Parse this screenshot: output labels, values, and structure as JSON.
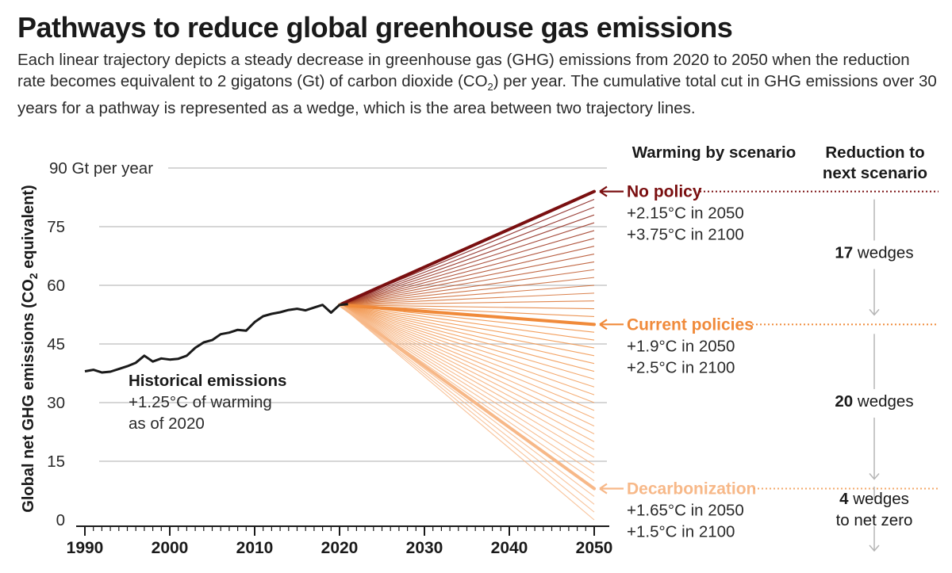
{
  "header": {
    "title": "Pathways to reduce global greenhouse gas emissions",
    "subtitle_part1": "Each linear trajectory depicts a steady decrease in greenhouse gas (GHG) emissions from 2020 to 2050 when the reduction rate becomes equivalent to 2 gigatons (Gt) of carbon dioxide (CO",
    "subtitle_sub": "2",
    "subtitle_part2": ") per year. The cumulative total cut in GHG emissions over 30 years for a pathway is represented as a wedge, which is the area between two trajectory lines."
  },
  "colors": {
    "no_policy": "#7a0f10",
    "current": "#f08a3a",
    "decarb": "#f7b888",
    "historical": "#1a1a1a",
    "grid": "#bdbdbd",
    "text": "#1a1a1a",
    "arrow_gray": "#b5b5b5"
  },
  "chart_data": {
    "type": "line",
    "title": "Pathways to reduce global greenhouse gas emissions",
    "xlabel": "",
    "ylabel_main": "Global net GHG emissions (CO",
    "ylabel_sub": "2",
    "ylabel_end": " equivalent)",
    "xlim": [
      1990,
      2050
    ],
    "ylim": [
      0,
      90
    ],
    "x_ticks": [
      1990,
      2000,
      2010,
      2020,
      2030,
      2040,
      2050
    ],
    "y_ticks": [
      {
        "value": 0,
        "label": "0"
      },
      {
        "value": 15,
        "label": "15"
      },
      {
        "value": 30,
        "label": "30"
      },
      {
        "value": 45,
        "label": "45"
      },
      {
        "value": 60,
        "label": "60"
      },
      {
        "value": 75,
        "label": "75"
      },
      {
        "value": 90,
        "label": "90 Gt per year"
      }
    ],
    "historical": {
      "name": "Historical emissions",
      "x": [
        1990,
        1991,
        1992,
        1993,
        1994,
        1995,
        1996,
        1997,
        1998,
        1999,
        2000,
        2001,
        2002,
        2003,
        2004,
        2005,
        2006,
        2007,
        2008,
        2009,
        2010,
        2011,
        2012,
        2013,
        2014,
        2015,
        2016,
        2017,
        2018,
        2019,
        2020,
        2021
      ],
      "y": [
        38.0,
        38.4,
        37.7,
        37.9,
        38.6,
        39.3,
        40.2,
        42.0,
        40.5,
        41.3,
        41.0,
        41.2,
        42.0,
        44.0,
        45.4,
        46.0,
        47.5,
        47.9,
        48.6,
        48.4,
        50.6,
        52.1,
        52.7,
        53.1,
        53.7,
        54.0,
        53.6,
        54.3,
        55.0,
        53.0,
        55.0,
        55.2
      ]
    },
    "trajectory_start": {
      "year": 2020,
      "value": 55
    },
    "trajectory_end_year": 2050,
    "trajectory_step": 2,
    "scenarios": [
      {
        "name": "No policy",
        "end_value": 84,
        "w2050": "+2.15°C in 2050",
        "w2100": "+3.75°C in 2100"
      },
      {
        "name": "Current policies",
        "end_value": 50,
        "w2050": "+1.9°C in 2050",
        "w2100": "+2.5°C in 2100"
      },
      {
        "name": "Decarbonization",
        "end_value": 8,
        "w2050": "+1.65°C in 2050",
        "w2100": "+1.5°C in 2100"
      }
    ],
    "historical_annotation": {
      "title": "Historical emissions",
      "line1": "+1.25°C of warming",
      "line2": "as of 2020"
    },
    "column_headers": {
      "warming": "Warming by scenario",
      "reduction_line1": "Reduction to",
      "reduction_line2": "next scenario"
    },
    "reductions": [
      {
        "count": "17",
        "unit": " wedges",
        "note": ""
      },
      {
        "count": "20",
        "unit": " wedges",
        "note": ""
      },
      {
        "count": "4",
        "unit": " wedges",
        "note": "to net zero"
      }
    ]
  }
}
